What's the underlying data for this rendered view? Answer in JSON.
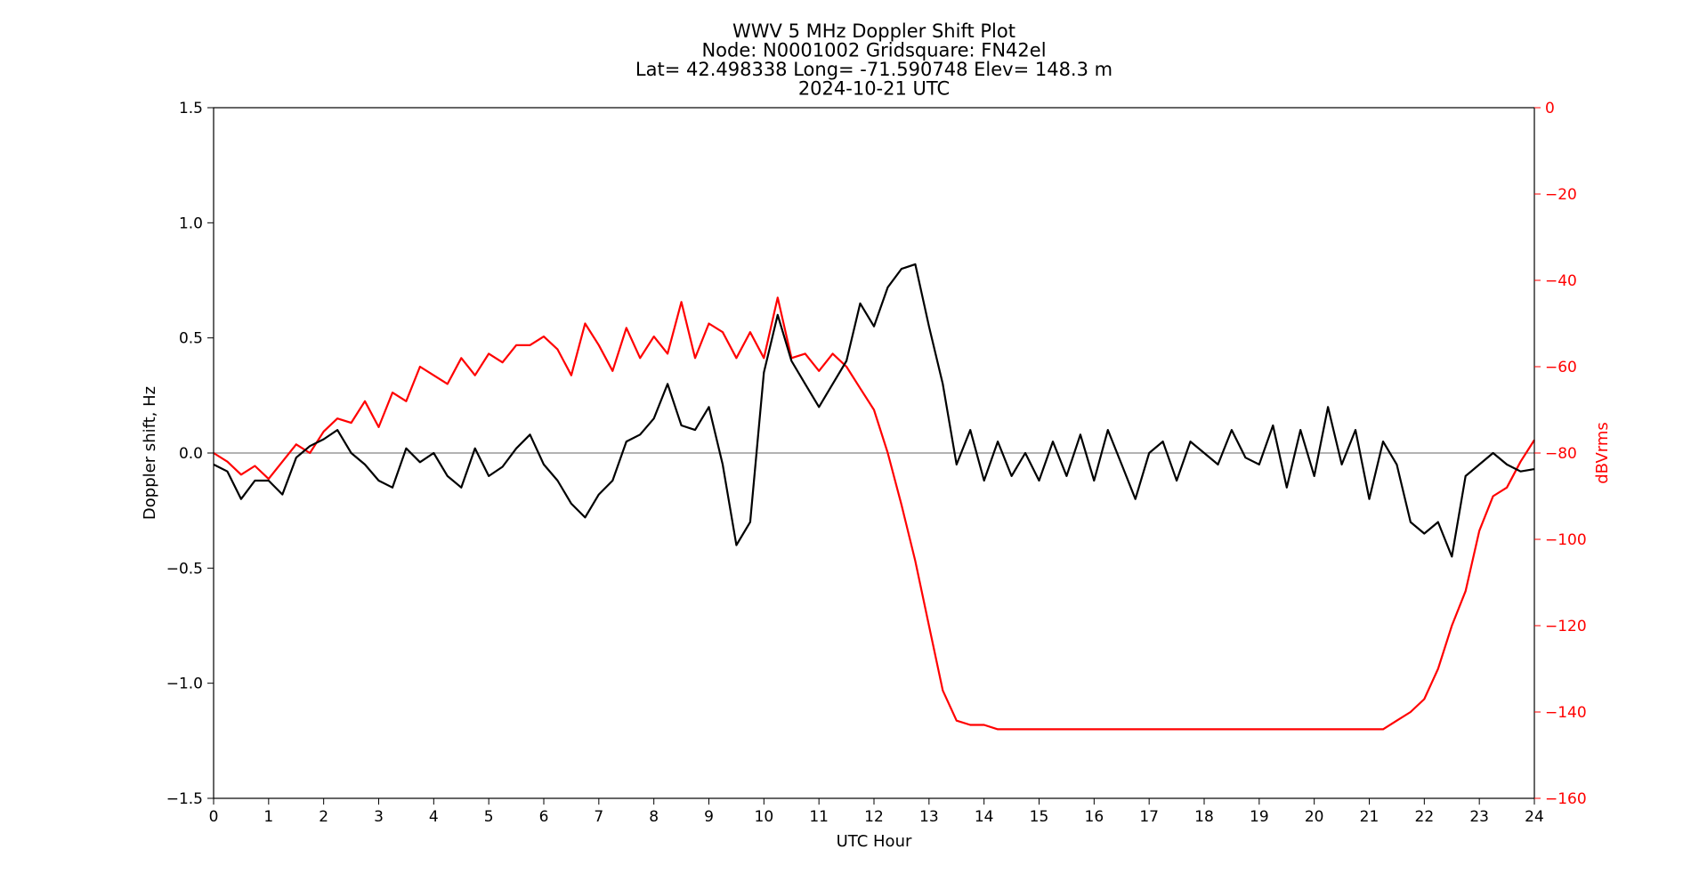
{
  "chart_data": {
    "type": "line",
    "title_lines": [
      "WWV 5 MHz Doppler Shift Plot",
      "Node:  N0001002      Gridsquare:  FN42el",
      "Lat= 42.498338    Long= -71.590748    Elev= 148.3 m",
      "2024-10-21  UTC"
    ],
    "xlabel": "UTC Hour",
    "ylabel_left": "Doppler shift, Hz",
    "ylabel_right": "dBVrms",
    "xlim": [
      0,
      24
    ],
    "ylim_left": [
      -1.5,
      1.5
    ],
    "ylim_right": [
      -160,
      0
    ],
    "x_ticks": [
      "0",
      "1",
      "2",
      "3",
      "4",
      "5",
      "6",
      "7",
      "8",
      "9",
      "10",
      "11",
      "12",
      "13",
      "14",
      "15",
      "16",
      "17",
      "18",
      "19",
      "20",
      "21",
      "22",
      "23",
      "24"
    ],
    "y_ticks_left": [
      "−1.5",
      "−1.0",
      "−0.5",
      "0.0",
      "0.5",
      "1.0",
      "1.5"
    ],
    "y_ticks_right": [
      "−160",
      "−140",
      "−120",
      "−100",
      "−80",
      "−60",
      "−40",
      "−20",
      "0"
    ],
    "zero_line": 0.0,
    "colors": {
      "doppler": "#000000",
      "power": "#ff0000",
      "zero_line": "#999999",
      "right_axis": "#ff0000"
    },
    "series": [
      {
        "axis": "left",
        "color": "#000000",
        "x": [
          0,
          0.25,
          0.5,
          0.75,
          1,
          1.25,
          1.5,
          1.75,
          2,
          2.25,
          2.5,
          2.75,
          3,
          3.25,
          3.5,
          3.75,
          4,
          4.25,
          4.5,
          4.75,
          5,
          5.25,
          5.5,
          5.75,
          6,
          6.25,
          6.5,
          6.75,
          7,
          7.25,
          7.5,
          7.75,
          8,
          8.25,
          8.5,
          8.75,
          9,
          9.25,
          9.5,
          9.75,
          10,
          10.25,
          10.5,
          10.75,
          11,
          11.25,
          11.5,
          11.75,
          12,
          12.25,
          12.5,
          12.75,
          13,
          13.25,
          13.5,
          13.75,
          14,
          14.25,
          14.5,
          14.75,
          15,
          15.25,
          15.5,
          15.75,
          16,
          16.25,
          16.5,
          16.75,
          17,
          17.25,
          17.5,
          17.75,
          18,
          18.25,
          18.5,
          18.75,
          19,
          19.25,
          19.5,
          19.75,
          20,
          20.25,
          20.5,
          20.75,
          21,
          21.25,
          21.5,
          21.75,
          22,
          22.25,
          22.5,
          22.75,
          23,
          23.25,
          23.5,
          23.75,
          24
        ],
        "y": [
          -0.05,
          -0.08,
          -0.2,
          -0.12,
          -0.12,
          -0.18,
          -0.02,
          0.03,
          0.06,
          0.1,
          0.0,
          -0.05,
          -0.12,
          -0.15,
          0.02,
          -0.04,
          0.0,
          -0.1,
          -0.15,
          0.02,
          -0.1,
          -0.06,
          0.02,
          0.08,
          -0.05,
          -0.12,
          -0.22,
          -0.28,
          -0.18,
          -0.12,
          0.05,
          0.08,
          0.15,
          0.3,
          0.12,
          0.1,
          0.2,
          -0.05,
          -0.4,
          -0.3,
          0.35,
          0.6,
          0.4,
          0.3,
          0.2,
          0.3,
          0.4,
          0.65,
          0.55,
          0.72,
          0.8,
          0.82,
          0.55,
          0.3,
          -0.05,
          0.1,
          -0.12,
          0.05,
          -0.1,
          0.0,
          -0.12,
          0.05,
          -0.1,
          0.08,
          -0.12,
          0.1,
          -0.05,
          -0.2,
          0.0,
          0.05,
          -0.12,
          0.05,
          0.0,
          -0.05,
          0.1,
          -0.02,
          -0.05,
          0.12,
          -0.15,
          0.1,
          -0.1,
          0.2,
          -0.05,
          0.1,
          -0.2,
          0.05,
          -0.05,
          -0.3,
          -0.35,
          -0.3,
          -0.45,
          -0.1,
          -0.05,
          0.0,
          -0.05,
          -0.08,
          -0.07
        ]
      },
      {
        "axis": "right",
        "color": "#ff0000",
        "x": [
          0,
          0.25,
          0.5,
          0.75,
          1,
          1.25,
          1.5,
          1.75,
          2,
          2.25,
          2.5,
          2.75,
          3,
          3.25,
          3.5,
          3.75,
          4,
          4.25,
          4.5,
          4.75,
          5,
          5.25,
          5.5,
          5.75,
          6,
          6.25,
          6.5,
          6.75,
          7,
          7.25,
          7.5,
          7.75,
          8,
          8.25,
          8.5,
          8.75,
          9,
          9.25,
          9.5,
          9.75,
          10,
          10.25,
          10.5,
          10.75,
          11,
          11.25,
          11.5,
          11.75,
          12,
          12.25,
          12.5,
          12.75,
          13,
          13.25,
          13.5,
          13.75,
          14,
          14.25,
          14.5,
          14.75,
          15,
          15.25,
          15.5,
          15.75,
          16,
          16.25,
          16.5,
          16.75,
          17,
          17.25,
          17.5,
          17.75,
          18,
          18.25,
          18.5,
          18.75,
          19,
          19.25,
          19.5,
          19.75,
          20,
          20.25,
          20.5,
          20.75,
          21,
          21.25,
          21.5,
          21.75,
          22,
          22.25,
          22.5,
          22.75,
          23,
          23.25,
          23.5,
          23.75,
          24
        ],
        "y": [
          -80,
          -82,
          -85,
          -83,
          -86,
          -82,
          -78,
          -80,
          -75,
          -72,
          -73,
          -68,
          -74,
          -66,
          -68,
          -60,
          -62,
          -64,
          -58,
          -62,
          -57,
          -59,
          -55,
          -55,
          -53,
          -56,
          -62,
          -50,
          -55,
          -61,
          -51,
          -58,
          -53,
          -57,
          -45,
          -58,
          -50,
          -52,
          -58,
          -52,
          -58,
          -44,
          -58,
          -57,
          -61,
          -57,
          -60,
          -65,
          -70,
          -80,
          -92,
          -105,
          -120,
          -135,
          -142,
          -143,
          -143,
          -144,
          -144,
          -144,
          -144,
          -144,
          -144,
          -144,
          -144,
          -144,
          -144,
          -144,
          -144,
          -144,
          -144,
          -144,
          -144,
          -144,
          -144,
          -144,
          -144,
          -144,
          -144,
          -144,
          -144,
          -144,
          -144,
          -144,
          -144,
          -144,
          -142,
          -140,
          -137,
          -130,
          -120,
          -112,
          -98,
          -90,
          -88,
          -82,
          -77
        ]
      }
    ]
  }
}
